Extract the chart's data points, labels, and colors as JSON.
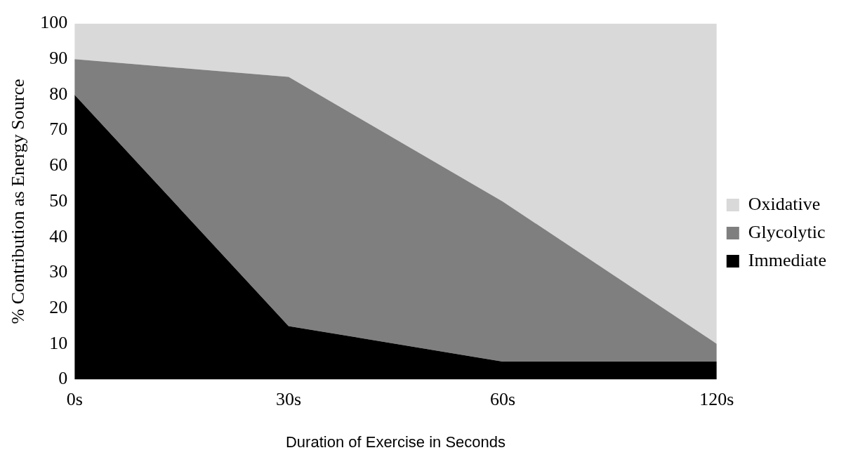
{
  "chart_data": {
    "type": "area",
    "stacked": true,
    "xlabel": "Duration of Exercise in Seconds",
    "ylabel": "% Contribution as Energy Source",
    "categories": [
      "0s",
      "30s",
      "60s",
      "120s"
    ],
    "series": [
      {
        "name": "Immediate",
        "color": "#000000",
        "values": [
          80,
          15,
          5,
          5
        ]
      },
      {
        "name": "Glycolytic",
        "color": "#7f7f7f",
        "values": [
          10,
          70,
          45,
          5
        ]
      },
      {
        "name": "Oxidative",
        "color": "#d9d9d9",
        "values": [
          10,
          15,
          50,
          90
        ]
      }
    ],
    "ylim": [
      0,
      100
    ],
    "yticks": [
      0,
      10,
      20,
      30,
      40,
      50,
      60,
      70,
      80,
      90,
      100
    ],
    "grid": false,
    "legend": "right"
  }
}
